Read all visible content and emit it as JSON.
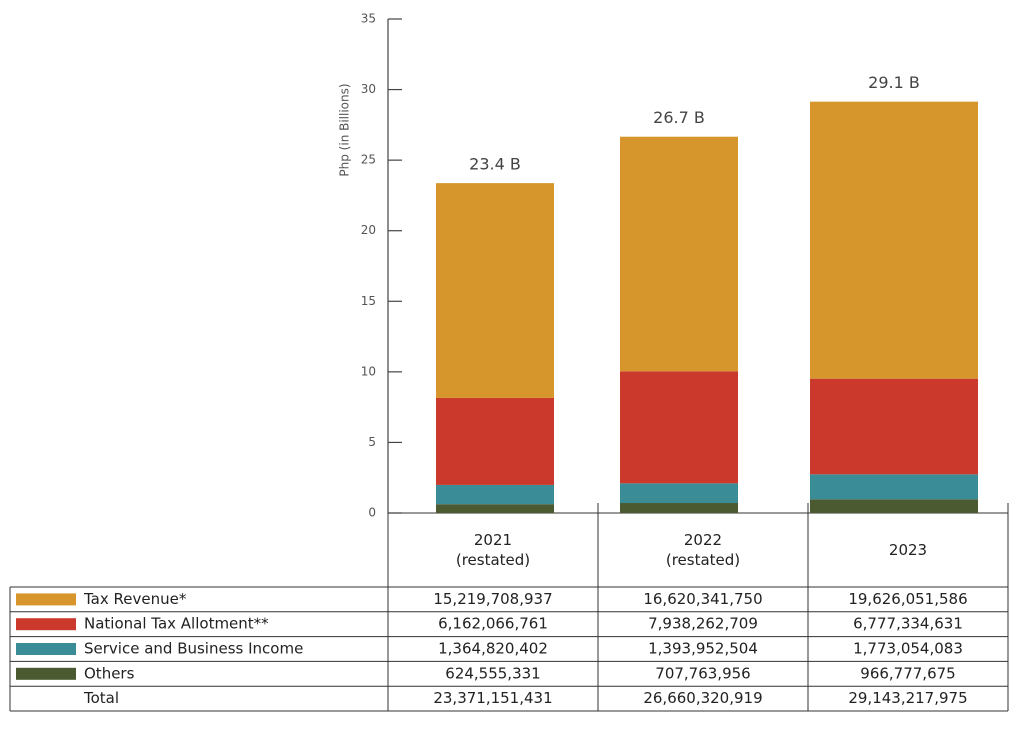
{
  "chart_data": {
    "type": "bar",
    "stacked": true,
    "y_label": "Php (in Billions)",
    "categories": [
      "2021\n(restated)",
      "2022\n(restated)",
      "2023"
    ],
    "ylim": [
      0,
      35
    ],
    "yticks": [
      0,
      5,
      10,
      15,
      20,
      25,
      30,
      35
    ],
    "series": [
      {
        "name": "Others",
        "color": "#4b5a31",
        "values": [
          0.624555331,
          0.707763956,
          0.966777675
        ],
        "value_labels": [
          "624,555,331",
          "707,763,956",
          "966,777,675"
        ]
      },
      {
        "name": "Service and Business Income",
        "color": "#3a8d97",
        "values": [
          1.364820402,
          1.393952504,
          1.773054083
        ],
        "value_labels": [
          "1,364,820,402",
          "1,393,952,504",
          "1,773,054,083"
        ]
      },
      {
        "name": "National Tax Allotment**",
        "color": "#ca392b",
        "values": [
          6.162066761,
          7.938262709,
          6.777334631
        ],
        "value_labels": [
          "6,162,066,761",
          "7,938,262,709",
          "6,777,334,631"
        ]
      },
      {
        "name": "Tax Revenue*",
        "color": "#d6962c",
        "values": [
          15.219708937,
          16.62034175,
          19.626051586
        ],
        "value_labels": [
          "15,219,708,937",
          "16,620,341,750",
          "19,626,051,586"
        ]
      }
    ],
    "totals": {
      "name": "Total",
      "values": [
        23.371151431,
        26.660320919,
        29.143217975
      ],
      "value_labels": [
        "23,371,151,431",
        "26,660,320,919",
        "29,143,217,975"
      ],
      "annotations": [
        "23.4 B",
        "26.7 B",
        "29.1 B"
      ]
    }
  }
}
